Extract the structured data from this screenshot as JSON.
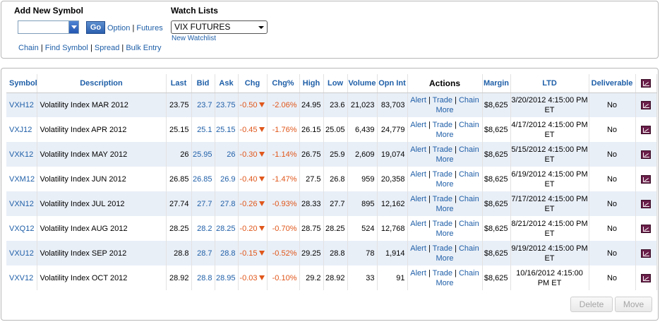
{
  "add_symbol": {
    "title": "Add New Symbol",
    "go_label": "Go",
    "option_label": "Option",
    "separator": "|",
    "futures_label": "Futures",
    "links": [
      "Chain",
      "Find Symbol",
      "Spread",
      "Bulk Entry"
    ]
  },
  "watch_lists": {
    "title": "Watch Lists",
    "selected": "VIX FUTURES",
    "new_watchlist": "New Watchlist"
  },
  "table": {
    "headers": {
      "symbol": "Symbol",
      "description": "Description",
      "last": "Last",
      "bid": "Bid",
      "ask": "Ask",
      "chg": "Chg",
      "chg_pct": "Chg%",
      "high": "High",
      "low": "Low",
      "volume": "Volume",
      "opn_int": "Opn Int",
      "actions": "Actions",
      "margin": "Margin",
      "ltd": "LTD",
      "deliverable": "Deliverable"
    },
    "action_labels": {
      "alert": "Alert",
      "trade": "Trade",
      "chain": "Chain",
      "more": "More",
      "sep": "|"
    },
    "rows": [
      {
        "symbol": "VXH12",
        "description": "Volatility Index MAR 2012",
        "last": "23.75",
        "bid": "23.7",
        "ask": "23.75",
        "chg": "-0.50",
        "chg_pct": "-2.06%",
        "high": "24.95",
        "low": "23.6",
        "volume": "21,023",
        "opn_int": "83,703",
        "margin": "$8,625",
        "ltd": "3/20/2012 4:15:00 PM ET",
        "deliverable": "No"
      },
      {
        "symbol": "VXJ12",
        "description": "Volatility Index APR 2012",
        "last": "25.15",
        "bid": "25.1",
        "ask": "25.15",
        "chg": "-0.45",
        "chg_pct": "-1.76%",
        "high": "26.15",
        "low": "25.05",
        "volume": "6,439",
        "opn_int": "24,779",
        "margin": "$8,625",
        "ltd": "4/17/2012 4:15:00 PM ET",
        "deliverable": "No"
      },
      {
        "symbol": "VXK12",
        "description": "Volatility Index MAY 2012",
        "last": "26",
        "bid": "25.95",
        "ask": "26",
        "chg": "-0.30",
        "chg_pct": "-1.14%",
        "high": "26.75",
        "low": "25.9",
        "volume": "2,609",
        "opn_int": "19,074",
        "margin": "$8,625",
        "ltd": "5/15/2012 4:15:00 PM ET",
        "deliverable": "No"
      },
      {
        "symbol": "VXM12",
        "description": "Volatility Index JUN 2012",
        "last": "26.85",
        "bid": "26.85",
        "ask": "26.9",
        "chg": "-0.40",
        "chg_pct": "-1.47%",
        "high": "27.5",
        "low": "26.8",
        "volume": "959",
        "opn_int": "20,358",
        "margin": "$8,625",
        "ltd": "6/19/2012 4:15:00 PM ET",
        "deliverable": "No"
      },
      {
        "symbol": "VXN12",
        "description": "Volatility Index JUL 2012",
        "last": "27.74",
        "bid": "27.7",
        "ask": "27.8",
        "chg": "-0.26",
        "chg_pct": "-0.93%",
        "high": "28.33",
        "low": "27.7",
        "volume": "895",
        "opn_int": "12,162",
        "margin": "$8,625",
        "ltd": "7/17/2012 4:15:00 PM ET",
        "deliverable": "No"
      },
      {
        "symbol": "VXQ12",
        "description": "Volatility Index AUG 2012",
        "last": "28.25",
        "bid": "28.2",
        "ask": "28.25",
        "chg": "-0.20",
        "chg_pct": "-0.70%",
        "high": "28.75",
        "low": "28.25",
        "volume": "524",
        "opn_int": "12,768",
        "margin": "$8,625",
        "ltd": "8/21/2012 4:15:00 PM ET",
        "deliverable": "No"
      },
      {
        "symbol": "VXU12",
        "description": "Volatility Index SEP 2012",
        "last": "28.8",
        "bid": "28.7",
        "ask": "28.8",
        "chg": "-0.15",
        "chg_pct": "-0.52%",
        "high": "29.25",
        "low": "28.8",
        "volume": "78",
        "opn_int": "1,914",
        "margin": "$8,625",
        "ltd": "9/19/2012 4:15:00 PM ET",
        "deliverable": "No"
      },
      {
        "symbol": "VXV12",
        "description": "Volatility Index OCT 2012",
        "last": "28.92",
        "bid": "28.8",
        "ask": "28.95",
        "chg": "-0.03",
        "chg_pct": "-0.10%",
        "high": "29.2",
        "low": "28.92",
        "volume": "33",
        "opn_int": "91",
        "margin": "$8,625",
        "ltd": "10/16/2012 4:15:00 PM ET",
        "deliverable": "No"
      }
    ]
  },
  "buttons": {
    "delete": "Delete",
    "move": "Move"
  },
  "icons": {
    "chart": "chart-icon",
    "triangle": "down-triangle-icon"
  },
  "colors": {
    "link": "#1f5fa8",
    "negative": "#e0571b",
    "row_stripe": "#e9eff7"
  }
}
